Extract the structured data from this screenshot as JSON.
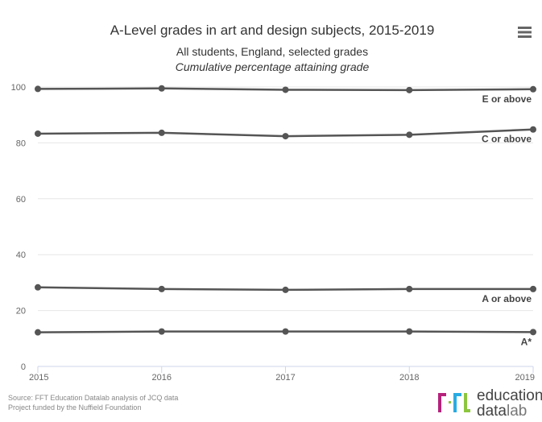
{
  "chart_data": {
    "type": "line",
    "title": "A-Level grades in art and design subjects, 2015-2019",
    "subtitle": "All students, England, selected grades",
    "subtitle2": "Cumulative percentage attaining grade",
    "xlabel": "",
    "ylabel": "",
    "x": [
      "2015",
      "2016",
      "2017",
      "2018",
      "2019"
    ],
    "ylim": [
      0,
      100
    ],
    "yticks": [
      "0",
      "20",
      "40",
      "60",
      "80",
      "100"
    ],
    "grid": true,
    "legend": "none (end labels)",
    "series": [
      {
        "name": "E or above",
        "values": [
          99.3,
          99.5,
          99.0,
          98.9,
          99.2
        ]
      },
      {
        "name": "C or above",
        "values": [
          83.3,
          83.6,
          82.4,
          82.9,
          84.8
        ]
      },
      {
        "name": "A or above",
        "values": [
          28.3,
          27.7,
          27.4,
          27.7,
          27.7
        ]
      },
      {
        "name": "A*",
        "values": [
          12.2,
          12.5,
          12.5,
          12.5,
          12.3
        ]
      }
    ],
    "line_color": "#555555"
  },
  "source": "Source: FFT Education Datalab analysis of JCQ data",
  "funding": "Project funded by the Nuffield Foundation",
  "logo": {
    "letters": "fft",
    "word1": "education",
    "word2": "data",
    "word3": "lab"
  },
  "menu_icon": "hamburger-menu-icon"
}
